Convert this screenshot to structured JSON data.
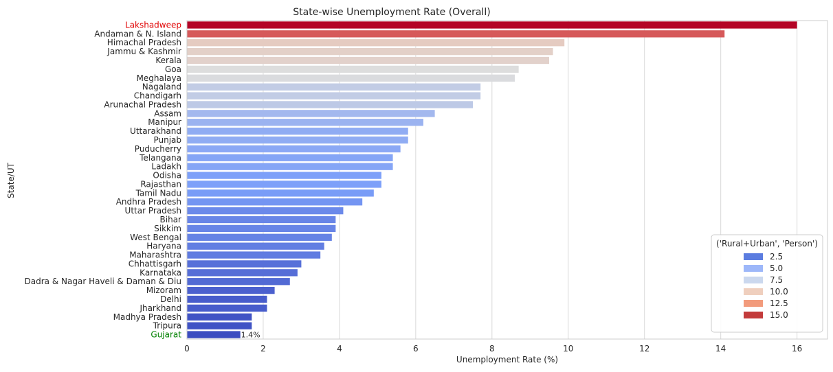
{
  "chart_data": {
    "type": "bar",
    "orientation": "horizontal",
    "title": "State-wise Unemployment Rate (Overall)",
    "xlabel": "Unemployment Rate (%)",
    "ylabel": "State/UT",
    "xlim": [
      0,
      16.8
    ],
    "xticks": [
      0,
      2,
      4,
      6,
      8,
      10,
      12,
      14,
      16
    ],
    "grid": "vertical",
    "categories": [
      "Lakshadweep",
      "Andaman & N. Island",
      "Himachal Pradesh",
      "Jammu & Kashmir",
      "Kerala",
      "Goa",
      "Meghalaya",
      "Nagaland",
      "Chandigarh",
      "Arunachal Pradesh",
      "Assam",
      "Manipur",
      "Uttarakhand",
      "Punjab",
      "Puducherry",
      "Telangana",
      "Ladakh",
      "Odisha",
      "Rajasthan",
      "Tamil Nadu",
      "Andhra Pradesh",
      "Uttar Pradesh",
      "Bihar",
      "Sikkim",
      "West Bengal",
      "Haryana",
      "Maharashtra",
      "Chhattisgarh",
      "Karnataka",
      "Dadra & Nagar Haveli & Daman & Diu",
      "Mizoram",
      "Delhi",
      "Jharkhand",
      "Madhya Pradesh",
      "Tripura",
      "Gujarat"
    ],
    "values": [
      16.0,
      14.1,
      9.9,
      9.6,
      9.5,
      8.7,
      8.6,
      7.7,
      7.7,
      7.5,
      6.5,
      6.2,
      5.8,
      5.8,
      5.6,
      5.4,
      5.4,
      5.1,
      5.1,
      4.9,
      4.6,
      4.1,
      3.9,
      3.9,
      3.8,
      3.6,
      3.5,
      3.0,
      2.9,
      2.7,
      2.3,
      2.1,
      2.1,
      1.7,
      1.7,
      1.4
    ],
    "highlight": {
      "max_label": "Lakshadweep",
      "max_color": "#e00000",
      "min_label": "Gujarat",
      "min_color": "#008000",
      "max_bar_color": "#b40426"
    },
    "annotations": [
      {
        "category": "Gujarat",
        "text": "1.4%"
      }
    ],
    "legend": {
      "title": "('Rural+Urban', 'Person')",
      "placement": "lower-right",
      "entries": [
        {
          "label": "2.5",
          "color": "#5b7ce0"
        },
        {
          "label": "5.0",
          "color": "#9db7f9"
        },
        {
          "label": "7.5",
          "color": "#cbd8ee"
        },
        {
          "label": "10.0",
          "color": "#efcfbe"
        },
        {
          "label": "12.5",
          "color": "#f29b7c"
        },
        {
          "label": "15.0",
          "color": "#c33b3b"
        }
      ]
    },
    "colormap": "coolwarm"
  }
}
